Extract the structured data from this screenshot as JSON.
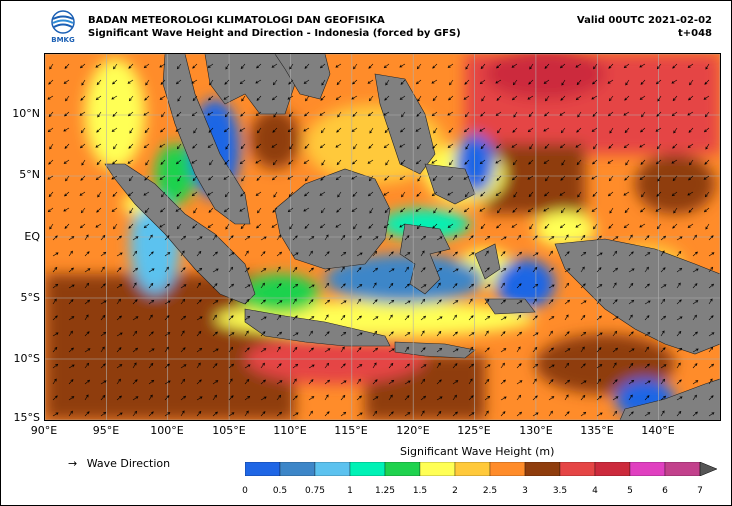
{
  "header": {
    "agency": "BADAN METEOROLOGI KLIMATOLOGI DAN GEOFISIKA",
    "subtitle": "Significant Wave Height and Direction - Indonesia (forced by GFS)",
    "valid": "Valid 00UTC 2021-02-02",
    "lead": "t+048"
  },
  "logo": {
    "text": "BMKG",
    "icon": "bmkg-logo-icon"
  },
  "axes": {
    "lat_labels": [
      "10°N",
      "5°N",
      "EQ",
      "5°S",
      "10°S",
      "15°S"
    ],
    "lon_labels": [
      "90°E",
      "95°E",
      "100°E",
      "105°E",
      "110°E",
      "115°E",
      "120°E",
      "125°E",
      "130°E",
      "135°E",
      "140°E"
    ],
    "lat_range": [
      -15,
      15
    ],
    "lon_range": [
      90,
      145
    ]
  },
  "colorbar": {
    "title": "Significant Wave Height (m)",
    "ticks": [
      "0",
      "0.5",
      "0.75",
      "1",
      "1.25",
      "1.5",
      "2",
      "2.5",
      "3",
      "3.5",
      "4",
      "5",
      "6",
      "7"
    ],
    "colors": [
      "#1f66e5",
      "#3d86c8",
      "#5cc2ef",
      "#00f2b6",
      "#1fd24e",
      "#ffff55",
      "#ffc93a",
      "#ff8c2a",
      "#8f3d0d",
      "#e54545",
      "#cc2a3c",
      "#e040c0",
      "#c2418c"
    ]
  },
  "legend": {
    "label": "Wave Direction",
    "icon": "arrow-right-icon"
  },
  "colors": {
    "land": "#808080",
    "grid": "#b0b0b0",
    "arrow": "#000000"
  }
}
